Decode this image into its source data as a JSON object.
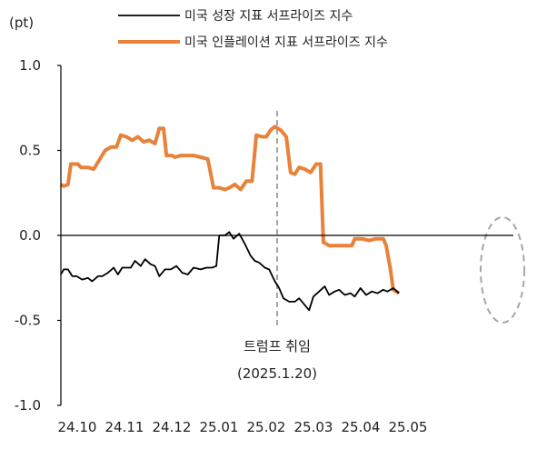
{
  "chart_data": {
    "type": "line",
    "unit_label": "(pt)",
    "xlabel": "",
    "ylabel": "",
    "x_tick_labels": [
      "24.10",
      "24.11",
      "24.12",
      "25.01",
      "25.02",
      "25.03",
      "25.04",
      "25.05"
    ],
    "y_ticks": [
      1.0,
      0.5,
      0.0,
      -0.5,
      -1.0
    ],
    "y_tick_labels": [
      "1.0",
      "0.5",
      "0.0",
      "-0.5",
      "-1.0"
    ],
    "ylim": [
      -1.0,
      1.0
    ],
    "x_start": "2024-10-01",
    "x_end": "2025-05-26",
    "grid": false,
    "legend_position": "top",
    "series": [
      {
        "name": "미국 성장 지표 서프라이즈 지수",
        "color": "#000000",
        "points": [
          [
            "2024-10-01",
            -0.23
          ],
          [
            "2024-10-03",
            -0.2
          ],
          [
            "2024-10-06",
            -0.2
          ],
          [
            "2024-10-09",
            -0.24
          ],
          [
            "2024-10-12",
            -0.24
          ],
          [
            "2024-10-16",
            -0.26
          ],
          [
            "2024-10-20",
            -0.25
          ],
          [
            "2024-10-23",
            -0.27
          ],
          [
            "2024-10-27",
            -0.24
          ],
          [
            "2024-10-30",
            -0.24
          ],
          [
            "2024-11-03",
            -0.22
          ],
          [
            "2024-11-07",
            -0.19
          ],
          [
            "2024-11-10",
            -0.23
          ],
          [
            "2024-11-13",
            -0.19
          ],
          [
            "2024-11-16",
            -0.19
          ],
          [
            "2024-11-19",
            -0.19
          ],
          [
            "2024-11-22",
            -0.15
          ],
          [
            "2024-11-26",
            -0.18
          ],
          [
            "2024-11-29",
            -0.14
          ],
          [
            "2024-12-03",
            -0.17
          ],
          [
            "2024-12-06",
            -0.18
          ],
          [
            "2024-12-09",
            -0.24
          ],
          [
            "2024-12-13",
            -0.2
          ],
          [
            "2024-12-17",
            -0.2
          ],
          [
            "2024-12-21",
            -0.18
          ],
          [
            "2024-12-25",
            -0.22
          ],
          [
            "2024-12-29",
            -0.23
          ],
          [
            "2025-01-02",
            -0.19
          ],
          [
            "2025-01-07",
            -0.2
          ],
          [
            "2025-01-11",
            -0.19
          ],
          [
            "2025-01-15",
            -0.19
          ],
          [
            "2025-01-18",
            -0.18
          ],
          [
            "2025-01-20",
            0.0
          ],
          [
            "2025-01-24",
            0.0
          ],
          [
            "2025-01-27",
            0.02
          ],
          [
            "2025-01-30",
            -0.02
          ],
          [
            "2025-02-03",
            0.01
          ],
          [
            "2025-02-07",
            -0.05
          ],
          [
            "2025-02-11",
            -0.12
          ],
          [
            "2025-02-14",
            -0.15
          ],
          [
            "2025-02-17",
            -0.16
          ],
          [
            "2025-02-21",
            -0.19
          ],
          [
            "2025-02-24",
            -0.2
          ],
          [
            "2025-02-28",
            -0.27
          ],
          [
            "2025-03-03",
            -0.31
          ],
          [
            "2025-03-06",
            -0.37
          ],
          [
            "2025-03-10",
            -0.39
          ],
          [
            "2025-03-14",
            -0.39
          ],
          [
            "2025-03-17",
            -0.37
          ],
          [
            "2025-03-21",
            -0.41
          ],
          [
            "2025-03-24",
            -0.44
          ],
          [
            "2025-03-27",
            -0.36
          ],
          [
            "2025-03-31",
            -0.33
          ],
          [
            "2025-04-04",
            -0.3
          ],
          [
            "2025-04-07",
            -0.35
          ],
          [
            "2025-04-11",
            -0.33
          ],
          [
            "2025-04-14",
            -0.32
          ],
          [
            "2025-04-18",
            -0.35
          ],
          [
            "2025-04-22",
            -0.34
          ],
          [
            "2025-04-25",
            -0.36
          ],
          [
            "2025-04-29",
            -0.31
          ],
          [
            "2025-05-03",
            -0.35
          ],
          [
            "2025-05-07",
            -0.33
          ],
          [
            "2025-05-11",
            -0.34
          ],
          [
            "2025-05-15",
            -0.32
          ],
          [
            "2025-05-18",
            -0.33
          ],
          [
            "2025-05-22",
            -0.31
          ],
          [
            "2025-05-26",
            -0.34
          ]
        ]
      },
      {
        "name": "미국 인플레이션 지표 서프라이즈 지수",
        "color": "#e8823a",
        "points": [
          [
            "2024-10-01",
            0.3
          ],
          [
            "2024-10-03",
            0.29
          ],
          [
            "2024-10-06",
            0.3
          ],
          [
            "2024-10-08",
            0.42
          ],
          [
            "2024-10-13",
            0.42
          ],
          [
            "2024-10-15",
            0.4
          ],
          [
            "2024-10-20",
            0.4
          ],
          [
            "2024-10-24",
            0.39
          ],
          [
            "2024-10-27",
            0.43
          ],
          [
            "2024-11-01",
            0.5
          ],
          [
            "2024-11-05",
            0.52
          ],
          [
            "2024-11-09",
            0.52
          ],
          [
            "2024-11-12",
            0.59
          ],
          [
            "2024-11-16",
            0.58
          ],
          [
            "2024-11-20",
            0.56
          ],
          [
            "2024-11-24",
            0.58
          ],
          [
            "2024-11-28",
            0.55
          ],
          [
            "2024-12-02",
            0.56
          ],
          [
            "2024-12-06",
            0.54
          ],
          [
            "2024-12-09",
            0.63
          ],
          [
            "2024-12-12",
            0.63
          ],
          [
            "2024-12-14",
            0.47
          ],
          [
            "2024-12-18",
            0.47
          ],
          [
            "2024-12-20",
            0.46
          ],
          [
            "2024-12-24",
            0.47
          ],
          [
            "2025-01-02",
            0.47
          ],
          [
            "2025-01-07",
            0.46
          ],
          [
            "2025-01-12",
            0.45
          ],
          [
            "2025-01-16",
            0.28
          ],
          [
            "2025-01-20",
            0.28
          ],
          [
            "2025-01-24",
            0.27
          ],
          [
            "2025-01-27",
            0.28
          ],
          [
            "2025-01-31",
            0.3
          ],
          [
            "2025-02-04",
            0.27
          ],
          [
            "2025-02-08",
            0.32
          ],
          [
            "2025-02-12",
            0.32
          ],
          [
            "2025-02-15",
            0.59
          ],
          [
            "2025-02-19",
            0.58
          ],
          [
            "2025-02-22",
            0.58
          ],
          [
            "2025-02-25",
            0.62
          ],
          [
            "2025-02-28",
            0.64
          ],
          [
            "2025-03-04",
            0.62
          ],
          [
            "2025-03-08",
            0.58
          ],
          [
            "2025-03-11",
            0.37
          ],
          [
            "2025-03-14",
            0.36
          ],
          [
            "2025-03-17",
            0.4
          ],
          [
            "2025-03-21",
            0.39
          ],
          [
            "2025-03-25",
            0.37
          ],
          [
            "2025-03-29",
            0.42
          ],
          [
            "2025-04-01",
            0.42
          ],
          [
            "2025-04-03",
            -0.04
          ],
          [
            "2025-04-07",
            -0.06
          ],
          [
            "2025-04-12",
            -0.06
          ],
          [
            "2025-04-18",
            -0.06
          ],
          [
            "2025-04-23",
            -0.06
          ],
          [
            "2025-04-25",
            -0.02
          ],
          [
            "2025-04-30",
            -0.02
          ],
          [
            "2025-05-05",
            -0.03
          ],
          [
            "2025-05-10",
            -0.02
          ],
          [
            "2025-05-15",
            -0.02
          ],
          [
            "2025-05-17",
            -0.06
          ],
          [
            "2025-05-20",
            -0.2
          ],
          [
            "2025-05-22",
            -0.32
          ],
          [
            "2025-05-26",
            -0.34
          ]
        ]
      }
    ],
    "annotations": [
      {
        "type": "vertical-line",
        "x": "2025-01-20",
        "style": "dashed",
        "color": "#a6a6a6",
        "label_lines": [
          "트럼프 취임",
          "(2025.1.20)"
        ]
      },
      {
        "type": "ellipse-highlight",
        "x": "2025-05-20",
        "y": -0.25,
        "style": "dashed",
        "color": "#a6a6a6"
      }
    ]
  }
}
